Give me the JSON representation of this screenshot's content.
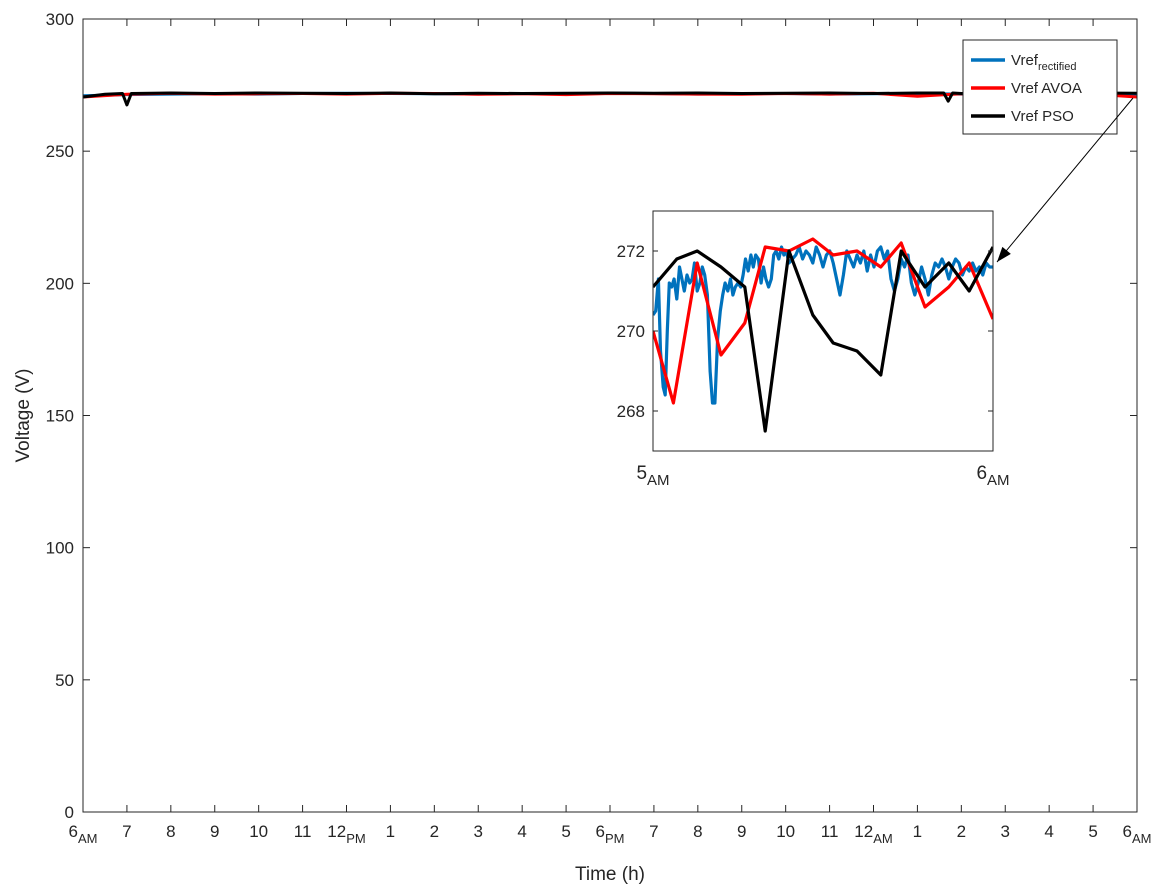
{
  "chart_data": [
    {
      "type": "line",
      "title": "",
      "xlabel": "Time (h)",
      "ylabel": "Voltage (V)",
      "xlim": [
        0,
        24
      ],
      "ylim": [
        0,
        300
      ],
      "grid": false,
      "legend_position": "top-right",
      "x_ticks": [
        {
          "main": "6",
          "sub": "AM"
        },
        {
          "main": "7",
          "sub": ""
        },
        {
          "main": "8",
          "sub": ""
        },
        {
          "main": "9",
          "sub": ""
        },
        {
          "main": "10",
          "sub": ""
        },
        {
          "main": "11",
          "sub": ""
        },
        {
          "main": "12",
          "sub": "PM"
        },
        {
          "main": "1",
          "sub": ""
        },
        {
          "main": "2",
          "sub": ""
        },
        {
          "main": "3",
          "sub": ""
        },
        {
          "main": "4",
          "sub": ""
        },
        {
          "main": "5",
          "sub": ""
        },
        {
          "main": "6",
          "sub": "PM"
        },
        {
          "main": "7",
          "sub": ""
        },
        {
          "main": "8",
          "sub": ""
        },
        {
          "main": "9",
          "sub": ""
        },
        {
          "main": "10",
          "sub": ""
        },
        {
          "main": "11",
          "sub": ""
        },
        {
          "main": "12",
          "sub": "AM"
        },
        {
          "main": "1",
          "sub": ""
        },
        {
          "main": "2",
          "sub": ""
        },
        {
          "main": "3",
          "sub": ""
        },
        {
          "main": "4",
          "sub": ""
        },
        {
          "main": "5",
          "sub": ""
        },
        {
          "main": "6",
          "sub": "AM"
        }
      ],
      "y_ticks": [
        "0",
        "50",
        "100",
        "150",
        "200",
        "250",
        "300"
      ],
      "series": [
        {
          "name": "Vref",
          "name_sub": "rectified",
          "color": "#0072BD",
          "x": [
            0,
            1,
            2,
            3,
            4,
            5,
            6,
            7,
            8,
            9,
            10,
            11,
            12,
            13,
            14,
            15,
            16,
            17,
            18,
            19,
            20,
            21,
            22,
            23,
            24
          ],
          "y": [
            271.0,
            271.4,
            271.6,
            271.7,
            271.6,
            271.8,
            271.9,
            271.8,
            271.7,
            271.6,
            271.8,
            271.7,
            271.9,
            271.8,
            271.6,
            271.7,
            271.8,
            271.6,
            271.7,
            271.8,
            271.6,
            271.7,
            271.8,
            271.6,
            271.6
          ]
        },
        {
          "name": "Vref AVOA",
          "color": "#FF0000",
          "x": [
            0,
            1,
            2,
            3,
            4,
            5,
            6,
            7,
            8,
            9,
            10,
            11,
            12,
            13,
            14,
            15,
            16,
            17,
            18,
            19,
            20,
            21,
            22,
            23,
            24
          ],
          "y": [
            270.5,
            271.5,
            271.9,
            271.6,
            271.7,
            271.8,
            271.6,
            271.9,
            271.8,
            271.5,
            271.7,
            271.4,
            271.8,
            271.7,
            271.6,
            271.5,
            271.8,
            271.6,
            271.9,
            270.8,
            271.7,
            271.5,
            271.8,
            271.6,
            270.5
          ]
        },
        {
          "name": "Vref PSO",
          "color": "#000000",
          "x": [
            0,
            0.5,
            0.9,
            1.0,
            1.1,
            2,
            3,
            4,
            5,
            6,
            7,
            8,
            9,
            10,
            11,
            12,
            13,
            14,
            15,
            16,
            17,
            18,
            19,
            19.6,
            19.7,
            19.8,
            20,
            21,
            22,
            23,
            24
          ],
          "y": [
            270.5,
            271.5,
            271.8,
            267.5,
            271.8,
            272.0,
            271.8,
            272.0,
            271.9,
            271.8,
            272.0,
            271.7,
            271.9,
            271.8,
            271.9,
            272.0,
            271.9,
            272.0,
            271.8,
            271.9,
            272.0,
            271.8,
            272.0,
            272.0,
            268.9,
            272.0,
            271.8,
            272.0,
            271.8,
            272.0,
            271.9
          ]
        }
      ]
    },
    {
      "type": "line",
      "title": "",
      "xlim": [
        5,
        6
      ],
      "ylim": [
        267,
        273
      ],
      "grid": false,
      "x_ticks": [
        {
          "main": "5",
          "sub": "AM"
        },
        {
          "main": "6",
          "sub": "AM"
        }
      ],
      "y_ticks": [
        "268",
        "270",
        "272"
      ],
      "series": [
        {
          "name": "Vref",
          "name_sub": "rectified",
          "color": "#0072BD",
          "x": [
            5.0,
            5.008,
            5.016,
            5.022,
            5.03,
            5.036,
            5.042,
            5.048,
            5.055,
            5.062,
            5.07,
            5.078,
            5.085,
            5.092,
            5.1,
            5.108,
            5.115,
            5.122,
            5.13,
            5.138,
            5.145,
            5.152,
            5.16,
            5.168,
            5.175,
            5.182,
            5.19,
            5.198,
            5.205,
            5.212,
            5.22,
            5.228,
            5.235,
            5.242,
            5.25,
            5.258,
            5.265,
            5.272,
            5.28,
            5.288,
            5.295,
            5.302,
            5.31,
            5.318,
            5.325,
            5.332,
            5.34,
            5.348,
            5.355,
            5.362,
            5.37,
            5.378,
            5.385,
            5.392,
            5.4,
            5.41,
            5.42,
            5.43,
            5.44,
            5.45,
            5.46,
            5.47,
            5.48,
            5.49,
            5.5,
            5.51,
            5.52,
            5.53,
            5.54,
            5.55,
            5.56,
            5.57,
            5.58,
            5.59,
            5.6,
            5.61,
            5.62,
            5.63,
            5.64,
            5.65,
            5.66,
            5.67,
            5.68,
            5.69,
            5.7,
            5.71,
            5.72,
            5.73,
            5.74,
            5.75,
            5.76,
            5.77,
            5.78,
            5.79,
            5.8,
            5.81,
            5.82,
            5.83,
            5.84,
            5.85,
            5.86,
            5.87,
            5.88,
            5.89,
            5.9,
            5.91,
            5.92,
            5.93,
            5.94,
            5.95,
            5.96,
            5.97,
            5.98,
            5.99,
            6.0
          ],
          "y": [
            270.4,
            270.5,
            271.3,
            269.5,
            268.6,
            268.4,
            270.0,
            271.2,
            271.1,
            271.3,
            270.8,
            271.6,
            271.3,
            271.0,
            271.4,
            271.2,
            271.3,
            271.7,
            271.0,
            271.2,
            271.6,
            271.4,
            270.9,
            269.0,
            268.2,
            268.2,
            269.8,
            270.5,
            270.9,
            271.2,
            271.0,
            271.3,
            270.9,
            271.1,
            271.2,
            271.1,
            271.4,
            271.8,
            271.5,
            271.9,
            271.6,
            271.9,
            271.8,
            271.2,
            271.6,
            271.3,
            271.1,
            271.3,
            271.9,
            272.0,
            271.8,
            272.1,
            271.9,
            272.0,
            271.7,
            271.8,
            271.9,
            272.1,
            271.8,
            272.0,
            271.9,
            271.7,
            272.1,
            271.9,
            271.6,
            271.9,
            272.0,
            271.7,
            271.3,
            270.9,
            271.4,
            272.0,
            271.8,
            271.6,
            271.9,
            271.7,
            272.0,
            271.5,
            271.9,
            271.6,
            272.0,
            272.1,
            271.8,
            272.0,
            271.3,
            271.0,
            271.3,
            271.8,
            271.6,
            271.9,
            271.2,
            270.9,
            271.2,
            271.6,
            271.3,
            270.9,
            271.4,
            271.7,
            271.6,
            271.8,
            271.6,
            271.3,
            271.6,
            271.8,
            271.7,
            271.4,
            271.6,
            271.5,
            271.7,
            271.5,
            271.6,
            271.4,
            271.7,
            271.6,
            271.6
          ]
        },
        {
          "name": "Vref AVOA",
          "color": "#FF0000",
          "x": [
            5.0,
            5.06,
            5.13,
            5.2,
            5.27,
            5.33,
            5.4,
            5.47,
            5.53,
            5.6,
            5.67,
            5.73,
            5.8,
            5.87,
            5.93,
            6.0
          ],
          "y": [
            270.0,
            268.2,
            271.7,
            269.4,
            270.2,
            272.1,
            272.0,
            272.3,
            271.9,
            272.0,
            271.6,
            272.2,
            270.6,
            271.1,
            271.7,
            270.3
          ]
        },
        {
          "name": "Vref PSO",
          "color": "#000000",
          "x": [
            5.0,
            5.07,
            5.13,
            5.2,
            5.27,
            5.33,
            5.4,
            5.47,
            5.53,
            5.6,
            5.67,
            5.73,
            5.8,
            5.87,
            5.93,
            6.0
          ],
          "y": [
            271.1,
            271.8,
            272.0,
            271.6,
            271.1,
            267.5,
            272.0,
            270.4,
            269.7,
            269.5,
            268.9,
            272.0,
            271.1,
            271.7,
            271.0,
            272.1
          ]
        }
      ]
    }
  ]
}
